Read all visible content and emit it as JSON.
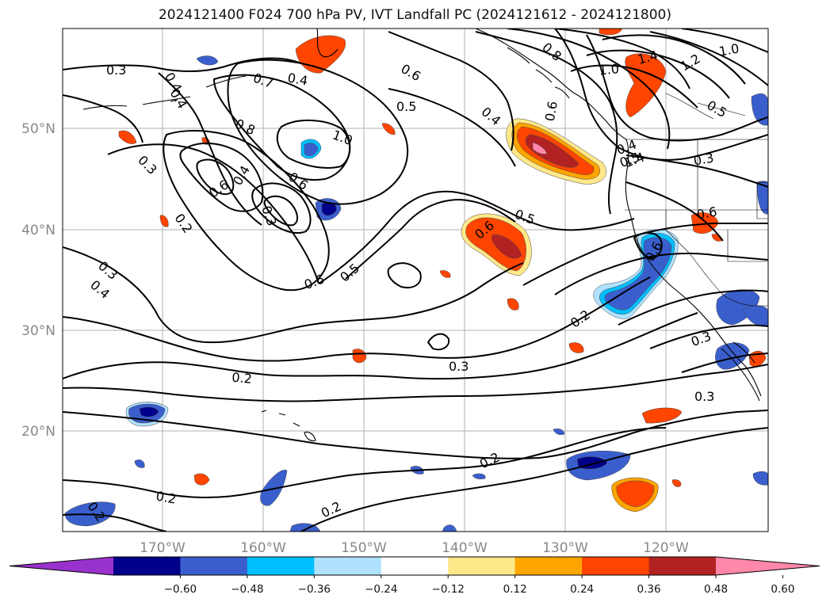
{
  "title": "2024121400 F024 700 hPa PV, IVT Landfall PC (2024121612 - 2024121800)",
  "lat_ticks": [
    "50°N",
    "40°N",
    "30°N",
    "20°N"
  ],
  "lon_ticks": [
    "170°W",
    "160°W",
    "150°W",
    "140°W",
    "130°W",
    "120°W"
  ],
  "colorbar": {
    "ticks": [
      "−0.60",
      "−0.48",
      "−0.36",
      "−0.24",
      "−0.12",
      "0.12",
      "0.24",
      "0.36",
      "0.48",
      "0.60"
    ],
    "colors": [
      "#9932cc",
      "#00008b",
      "#3a5fcd",
      "#00bfff",
      "#b0e2ff",
      "#ffffff",
      "#ffe88a",
      "#ffa500",
      "#ff4500",
      "#b22222",
      "#ff88aa"
    ]
  },
  "contour_labels": [
    "0.3",
    "0.4",
    "0.4",
    "0.7",
    "0.4",
    "0.6",
    "0.5",
    "0.4",
    "0.8",
    "1.0",
    "1.4",
    "1.2",
    "1.0",
    "0.5",
    "0.8",
    "1.0",
    "0.6",
    "0.6",
    "0.4",
    "0.6",
    "0.3",
    "0.3",
    "0.2",
    "0.5",
    "0.6",
    "0.6",
    "0.5",
    "0.6",
    "0.5",
    "0.3",
    "0.4",
    "0.6",
    "0.2",
    "0.3",
    "0.4",
    "0.2",
    "0.3",
    "0.3",
    "0.2",
    "0.2",
    "0.2",
    "0.2",
    "1.4",
    "0.3"
  ]
}
